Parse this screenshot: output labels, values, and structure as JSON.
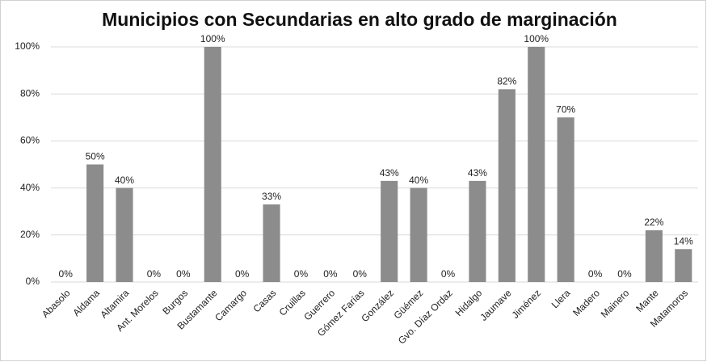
{
  "chart_data": {
    "type": "bar",
    "title": "Municipios con Secundarias en alto grado de marginación",
    "categories": [
      "Abasolo",
      "Aldama",
      "Altamira",
      "Ant. Morelos",
      "Burgos",
      "Bustamante",
      "Camargo",
      "Casas",
      "Cruillas",
      "Guerrero",
      "Gómez Farías",
      "González",
      "Güémez",
      "Gvo. Díaz Ordaz",
      "Hidalgo",
      "Jaumave",
      "Jiménez",
      "Llera",
      "Madero",
      "Mainero",
      "Mante",
      "Matamoros"
    ],
    "values": [
      0,
      50,
      40,
      0,
      0,
      100,
      0,
      33,
      0,
      0,
      0,
      43,
      40,
      0,
      43,
      82,
      100,
      70,
      0,
      0,
      22,
      14
    ],
    "value_labels": [
      "0%",
      "50%",
      "40%",
      "0%",
      "0%",
      "100%",
      "0%",
      "33%",
      "0%",
      "0%",
      "0%",
      "43%",
      "40%",
      "0%",
      "43%",
      "82%",
      "100%",
      "70%",
      "0%",
      "0%",
      "22%",
      "14%"
    ],
    "color": "#8c8c8c",
    "ylim": [
      0,
      100
    ],
    "yticks": [
      {
        "value": 0,
        "label": "0%"
      },
      {
        "value": 20,
        "label": "20%"
      },
      {
        "value": 40,
        "label": "40%"
      },
      {
        "value": 60,
        "label": "60%"
      },
      {
        "value": 80,
        "label": "80%"
      },
      {
        "value": 100,
        "label": "100%"
      }
    ],
    "grid": true
  }
}
